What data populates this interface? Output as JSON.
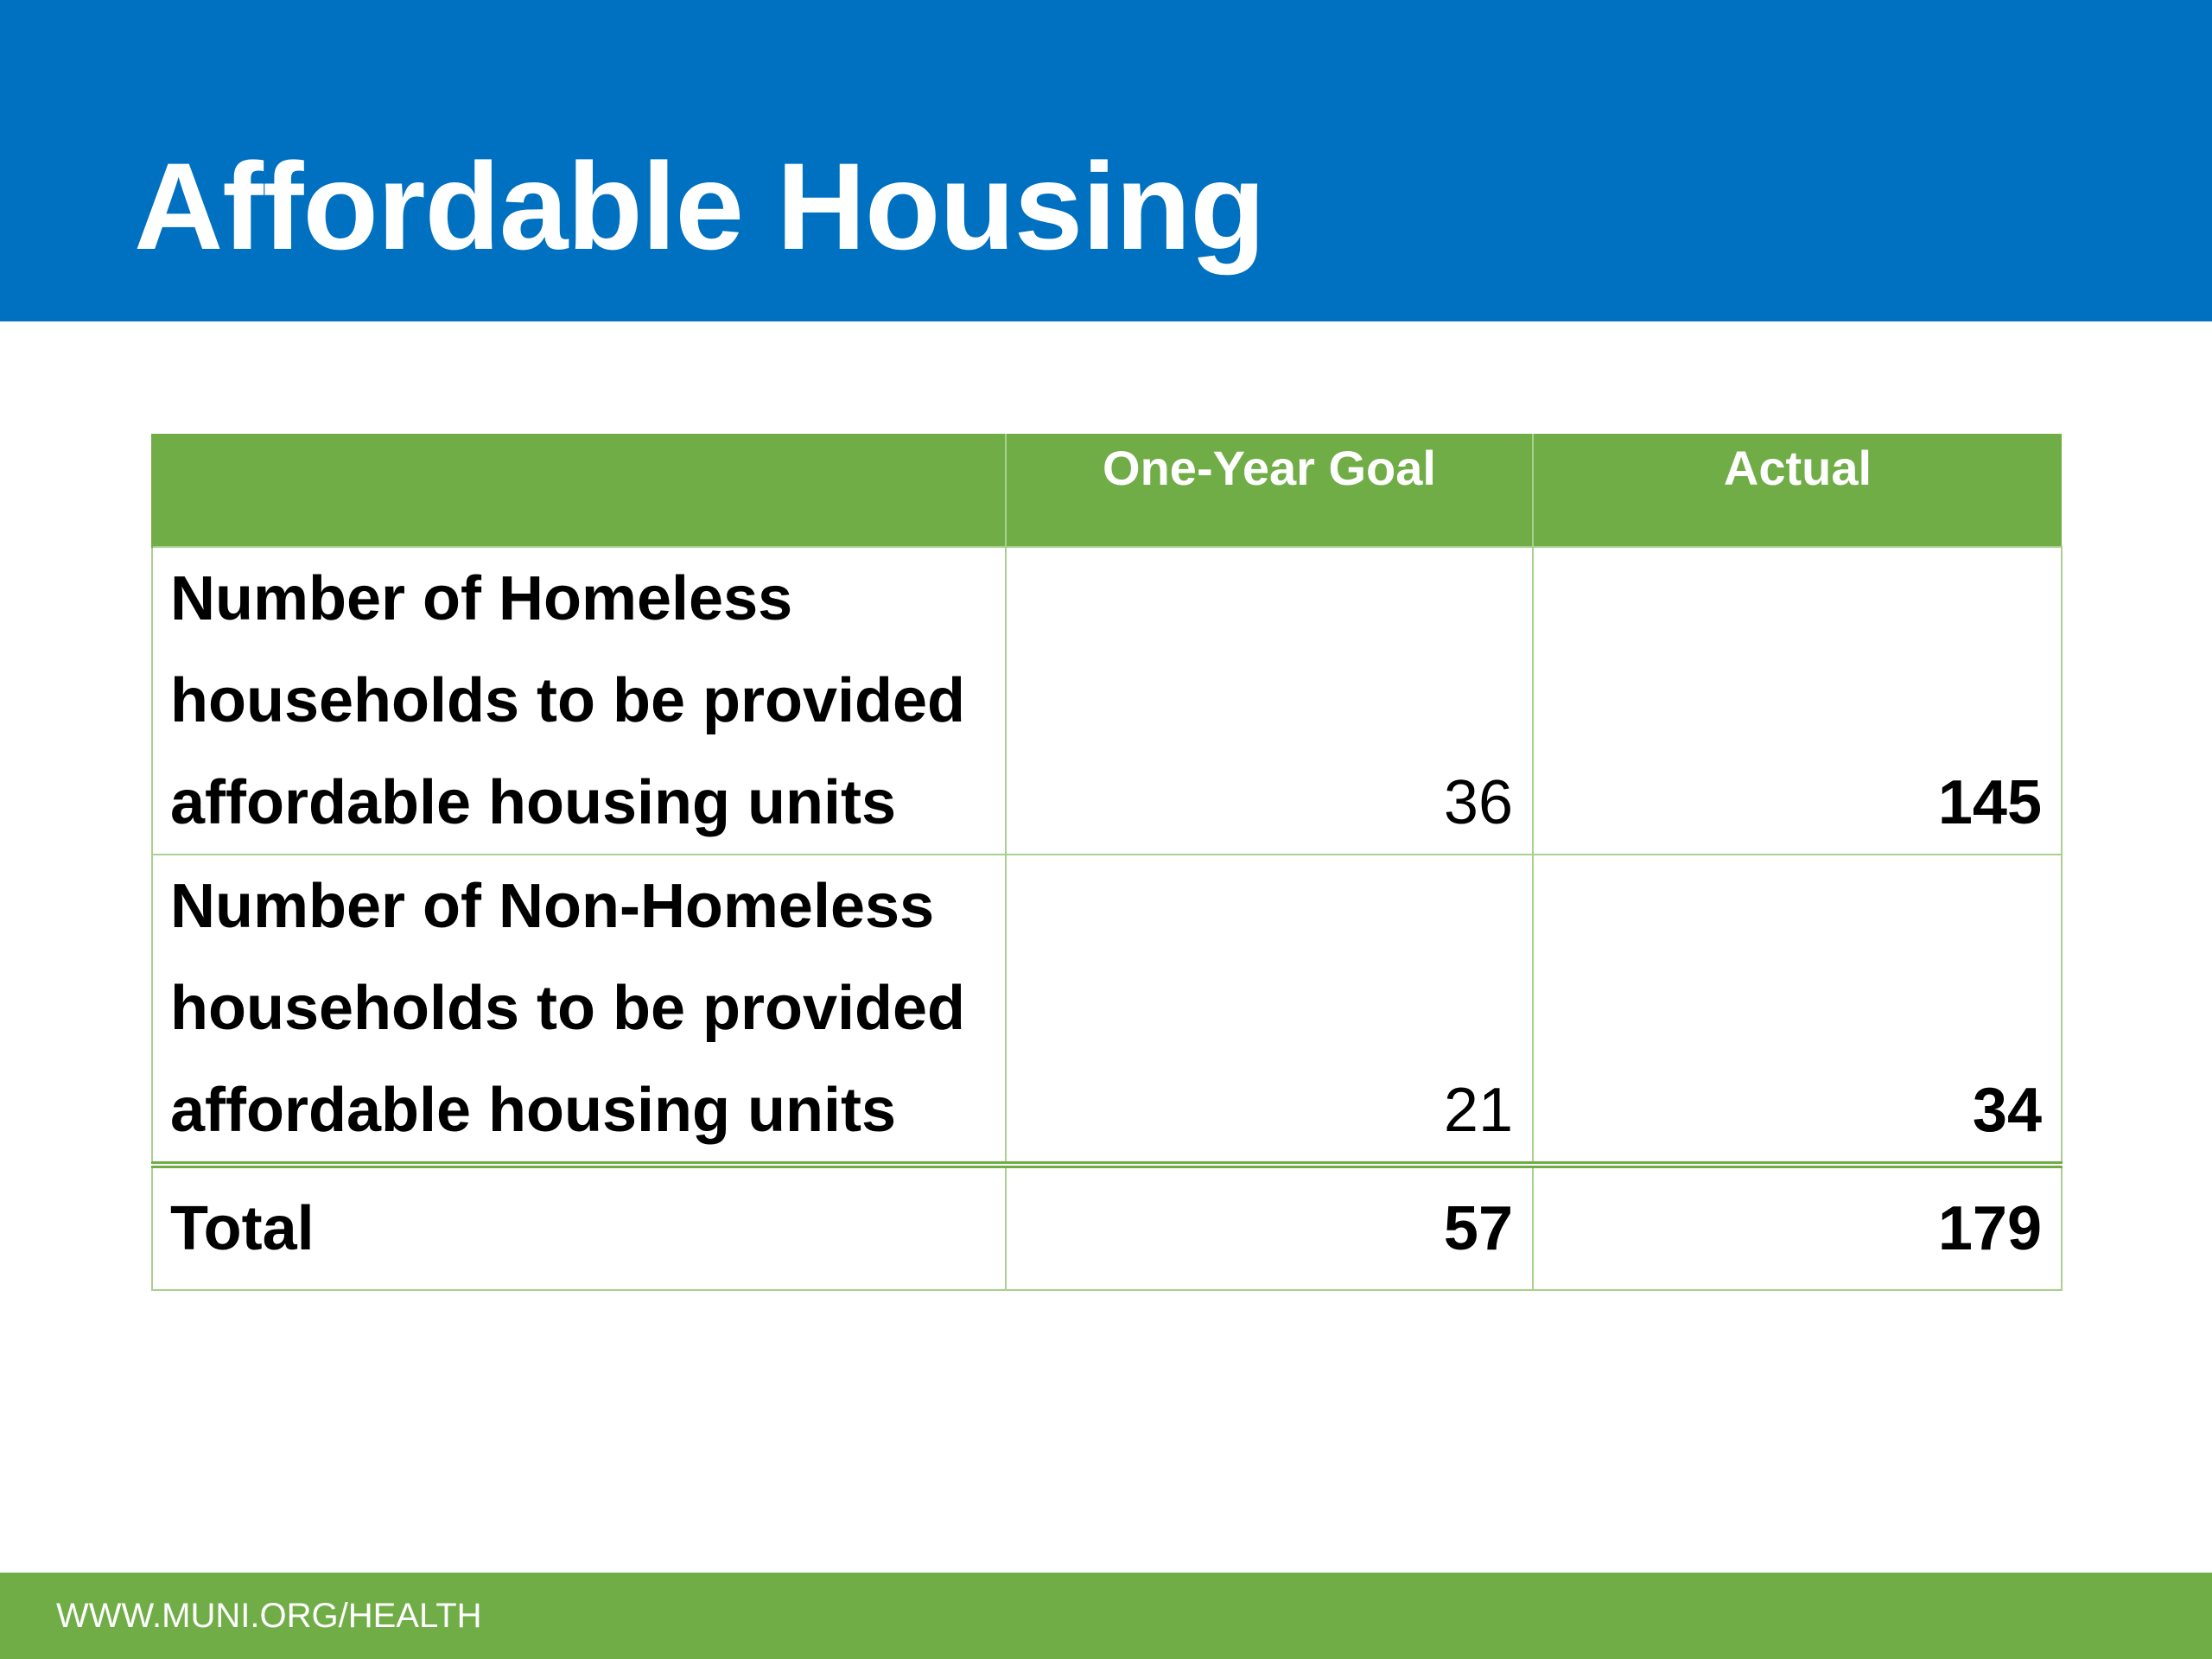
{
  "slide": {
    "title": "Affordable Housing"
  },
  "table": {
    "headers": [
      "",
      "One-Year Goal",
      "Actual"
    ],
    "rows": [
      {
        "label": "Number of Homeless households to be provided affordable housing units",
        "goal": "36",
        "actual": "145"
      },
      {
        "label": "Number of Non-Homeless households to be provided affordable housing units",
        "goal": "21",
        "actual": "34"
      }
    ],
    "total": {
      "label": "Total",
      "goal": "57",
      "actual": "179"
    }
  },
  "footer": {
    "url": "WWW.MUNI.ORG/HEALTH"
  },
  "colors": {
    "header_blue": "#0070C0",
    "accent_green": "#70AD47",
    "grid_green": "#A9D08E"
  }
}
